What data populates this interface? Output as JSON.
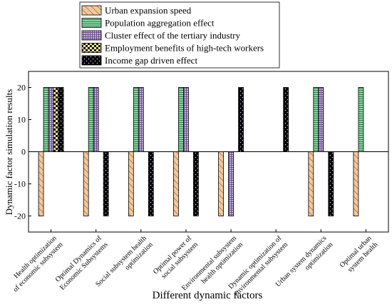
{
  "chart_data": {
    "type": "bar",
    "xlabel": "Different dynamic factors",
    "ylabel": "Dynamic factor simulation results",
    "ylim": [
      -25,
      25
    ],
    "yticks": [
      -20,
      -10,
      0,
      10,
      20
    ],
    "legend_position": "top-center",
    "categories": [
      [
        "Health optimization",
        "of economic subsystem"
      ],
      [
        "Optimal Dynamics of",
        "Economic Subsystems"
      ],
      [
        "Social subsystem health",
        "optimization"
      ],
      [
        "Optimal power of",
        "social subsystem"
      ],
      [
        "Environmental subsystem",
        "health optimization"
      ],
      [
        "Dynamic optimization of",
        "environmental subsystem"
      ],
      [
        "Urban system dynamics",
        "optimization"
      ],
      [
        "Optimal urban",
        "system health"
      ]
    ],
    "series": [
      {
        "name": "Urban expansion speed",
        "color": "#f5c79a",
        "pattern": "diagonal-hatch",
        "values": [
          -20,
          -20,
          -20,
          -20,
          -20,
          0,
          -20,
          -20
        ]
      },
      {
        "name": "Population aggregation effect",
        "color": "#86d9a0",
        "pattern": "horizontal-lines",
        "values": [
          20,
          20,
          20,
          20,
          0,
          0,
          20,
          20
        ]
      },
      {
        "name": "Cluster effect of the tertiary industry",
        "color": "#c9b2e3",
        "pattern": "grid",
        "values": [
          20,
          20,
          20,
          20,
          -20,
          0,
          20,
          0
        ]
      },
      {
        "name": "Employment benefits of high-tech workers",
        "color": "#f3ee8e",
        "pattern": "checker",
        "values": [
          20,
          0,
          0,
          0,
          0,
          0,
          0,
          0
        ]
      },
      {
        "name": "Income gap driven effect",
        "color": "#000000",
        "pattern": "dots",
        "values": [
          20,
          -20,
          -20,
          -20,
          20,
          20,
          -20,
          0
        ]
      }
    ]
  }
}
